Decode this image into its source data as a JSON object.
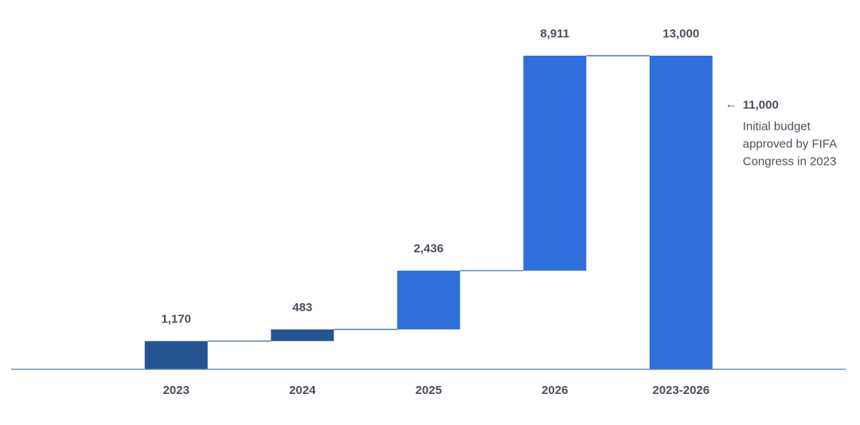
{
  "chart_data": {
    "type": "bar",
    "subtype": "waterfall",
    "title": "",
    "xlabel": "",
    "ylabel": "",
    "categories": [
      "2023",
      "2024",
      "2025",
      "2026",
      "2023-2026"
    ],
    "values": [
      1170,
      483,
      2436,
      8911,
      13000
    ],
    "value_labels": [
      "1,170",
      "483",
      "2,436",
      "8,911",
      "13,000"
    ],
    "is_total": [
      false,
      false,
      false,
      false,
      true
    ],
    "ylim": [
      0,
      13000
    ],
    "grid": false,
    "legend": "none",
    "annotation": {
      "target_category": "2023-2026",
      "value": 11000,
      "value_label": "11,000",
      "arrow": "←",
      "text_lines": [
        "Initial budget",
        "approved by FIFA",
        "Congress in 2023"
      ]
    },
    "colors": {
      "dark_bar": "#245592",
      "bright_bar": "#2f6fdb",
      "connector": "#3a5f8a",
      "baseline": "#5a7fa6",
      "label_text": "#4a4f5c",
      "annotation_text": "#4a4f5c"
    },
    "bar_colors": [
      "dark_bar",
      "dark_bar",
      "bright_bar",
      "bright_bar",
      "bright_bar"
    ]
  }
}
